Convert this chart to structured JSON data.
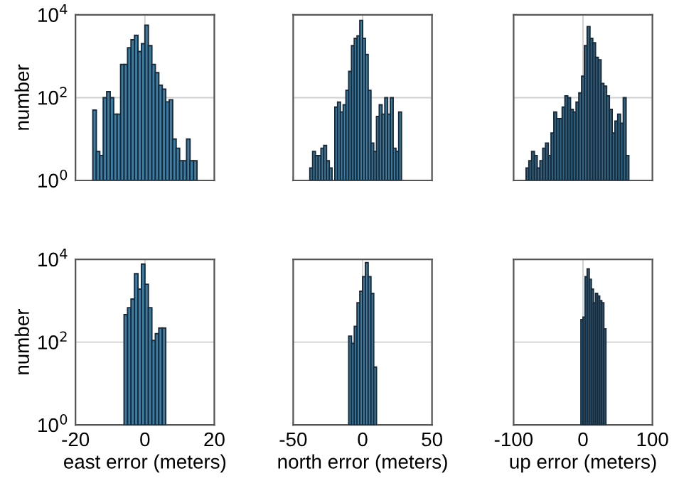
{
  "chart_data": [
    {
      "type": "histogram",
      "ylabel": "number",
      "log": "y",
      "xlim": [
        -20,
        20
      ],
      "xticks": [
        {
          "value": -20,
          "label": null
        },
        {
          "value": 0,
          "label": null
        },
        {
          "value": 20,
          "label": null
        }
      ],
      "ylim": [
        1,
        10000
      ],
      "yticks": [
        {
          "value": 1,
          "label": "10$^{0}$"
        },
        {
          "value": 100,
          "label": "10$^{2}$"
        },
        {
          "value": 10000,
          "label": "10$^{4}$"
        }
      ],
      "grid": true,
      "tick_labels": "y",
      "color": "#3b7ea6",
      "bins": [
        -15,
        -14,
        -13,
        -12,
        -11,
        -10,
        -9,
        -8,
        -7,
        -6,
        -5,
        -4,
        -3,
        -2,
        -1,
        0,
        1,
        2,
        3,
        4,
        5,
        6,
        7,
        8,
        9,
        10,
        11,
        12,
        13,
        14,
        15
      ],
      "values": [
        50,
        5,
        4,
        100,
        140,
        100,
        40,
        40,
        630,
        630,
        1600,
        2500,
        3200,
        1300,
        2000,
        5600,
        1800,
        630,
        400,
        200,
        160,
        79,
        89,
        10,
        6,
        3,
        3,
        10,
        3,
        3
      ]
    },
    {
      "type": "histogram",
      "log": "y",
      "xlim": [
        -50,
        50
      ],
      "xticks": [
        {
          "value": -50,
          "label": null
        },
        {
          "value": 0,
          "label": null
        },
        {
          "value": 50,
          "label": null
        }
      ],
      "ylim": [
        1,
        10000
      ],
      "yticks": [
        {
          "value": 1,
          "label": null
        },
        {
          "value": 100,
          "label": null
        },
        {
          "value": 10000,
          "label": null
        }
      ],
      "grid": true,
      "tick_labels": false,
      "color": "#3b7ea6",
      "bins": [
        -38,
        -36,
        -34,
        -32,
        -30,
        -28,
        -26,
        -24,
        -22,
        -20,
        -18,
        -16,
        -14,
        -12,
        -10,
        -8,
        -6,
        -4,
        -2,
        0,
        2,
        4,
        6,
        8,
        10,
        12,
        14,
        16,
        18,
        20,
        22,
        24,
        26,
        28
      ],
      "values": [
        2,
        5,
        4,
        4,
        6,
        7,
        3,
        2,
        null,
        59,
        78,
        45,
        67,
        150,
        430,
        1800,
        2700,
        3100,
        7300,
        2700,
        1100,
        150,
        8,
        5,
        35,
        67,
        40,
        100,
        40,
        100,
        6,
        5,
        45
      ]
    },
    {
      "type": "histogram",
      "log": "y",
      "xlim": [
        -100,
        100
      ],
      "xticks": [
        {
          "value": -100,
          "label": null
        },
        {
          "value": 0,
          "label": null
        },
        {
          "value": 100,
          "label": null
        }
      ],
      "ylim": [
        1,
        10000
      ],
      "yticks": [
        {
          "value": 1,
          "label": null
        },
        {
          "value": 100,
          "label": null
        },
        {
          "value": 10000,
          "label": null
        }
      ],
      "grid": true,
      "tick_labels": false,
      "color": "#2f6688",
      "bins": [
        -82,
        -78,
        -74,
        -70,
        -66,
        -62,
        -58,
        -54,
        -50,
        -46,
        -42,
        -38,
        -34,
        -30,
        -26,
        -22,
        -18,
        -14,
        -10,
        -6,
        -2,
        2,
        6,
        10,
        14,
        18,
        22,
        26,
        30,
        34,
        38,
        42,
        46,
        50,
        54,
        58,
        62,
        66
      ],
      "values": [
        2,
        3,
        5,
        4,
        2,
        3,
        6,
        8,
        4,
        14,
        45,
        31,
        31,
        59,
        110,
        100,
        52,
        45,
        78,
        130,
        330,
        1800,
        5200,
        2700,
        2100,
        940,
        820,
        220,
        190,
        110,
        52,
        14,
        27,
        40,
        24,
        100,
        4
      ]
    },
    {
      "type": "histogram",
      "ylabel": "number",
      "xlabel": "east error (meters)",
      "log": "y",
      "xlim": [
        -20,
        20
      ],
      "xticks": [
        -20,
        0,
        20
      ],
      "ylim": [
        1,
        10000
      ],
      "yticks": [
        {
          "value": 1,
          "label": "10$^{0}$"
        },
        {
          "value": 100,
          "label": "10$^{2}$"
        },
        {
          "value": 10000,
          "label": "10$^{4}$"
        }
      ],
      "grid": true,
      "color": "#3b7ea6",
      "bins": [
        -6,
        -5,
        -4,
        -3,
        -2,
        -1,
        0,
        1,
        2,
        3,
        4,
        5,
        6
      ],
      "values": [
        460,
        680,
        1100,
        4500,
        1900,
        7700,
        2500,
        680,
        110,
        160,
        220,
        220
      ]
    },
    {
      "type": "histogram",
      "xlabel": "north error (meters)",
      "log": "y",
      "xlim": [
        -50,
        50
      ],
      "xticks": [
        -50,
        0,
        50
      ],
      "ylim": [
        1,
        10000
      ],
      "yticks": [
        {
          "value": 1,
          "label": null
        },
        {
          "value": 100,
          "label": null
        },
        {
          "value": 10000,
          "label": null
        }
      ],
      "grid": true,
      "tick_labels": "x",
      "color": "#3b7ea6",
      "bins": [
        -10,
        -8,
        -6,
        -4,
        -2,
        0,
        2,
        4,
        6,
        8,
        10
      ],
      "values": [
        140,
        93,
        240,
        890,
        1700,
        3800,
        8300,
        3800,
        1500,
        25
      ]
    },
    {
      "type": "histogram",
      "xlabel": "up error (meters)",
      "log": "y",
      "xlim": [
        -100,
        100
      ],
      "xticks": [
        -100,
        0,
        100
      ],
      "ylim": [
        1,
        10000
      ],
      "yticks": [
        {
          "value": 1,
          "label": null
        },
        {
          "value": 100,
          "label": null
        },
        {
          "value": 10000,
          "label": null
        }
      ],
      "grid": true,
      "tick_labels": "x",
      "color": "#2f6688",
      "bins": [
        -3,
        0,
        3,
        6,
        9,
        12,
        15,
        18,
        21,
        24,
        27,
        30,
        33
      ],
      "values": [
        350,
        400,
        3800,
        5900,
        3300,
        1900,
        890,
        1500,
        1300,
        1000,
        890,
        210
      ]
    }
  ]
}
